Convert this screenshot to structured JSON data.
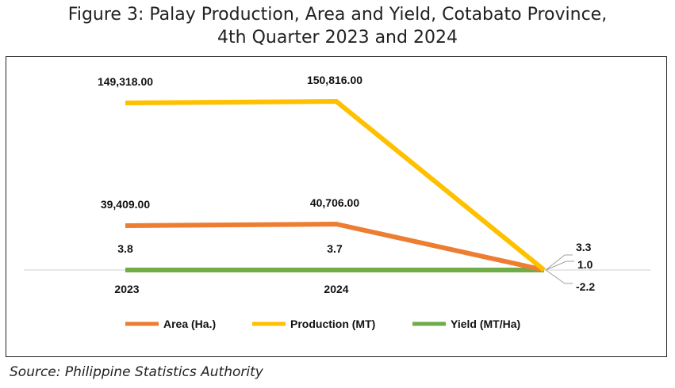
{
  "chart_data": {
    "type": "line",
    "title_line1": "Figure 3: Palay Production, Area and Yield, Cotabato Province,",
    "title_line2": "4th Quarter 2023 and 2024",
    "categories": [
      "2023",
      "2024"
    ],
    "series": [
      {
        "name": "Area (Ha.)",
        "color": "#ED7D31",
        "values": [
          39409.0,
          40706.0
        ],
        "labels": [
          "39,409.00",
          "40,706.00"
        ],
        "growth": 3.3,
        "growth_label": "3.3"
      },
      {
        "name": "Production (MT)",
        "color": "#FFC000",
        "values": [
          149318.0,
          150816.0
        ],
        "labels": [
          "149,318.00",
          "150,816.00"
        ],
        "growth": 1.0,
        "growth_label": "1.0"
      },
      {
        "name": "Yield (MT/Ha)",
        "color": "#70AD47",
        "values": [
          3.8,
          3.7
        ],
        "labels": [
          "3.8",
          "3.7"
        ],
        "growth": -2.2,
        "growth_label": "-2.2"
      }
    ],
    "legend_position": "bottom",
    "grid": false,
    "source": "Source: Philippine Statistics Authority"
  }
}
